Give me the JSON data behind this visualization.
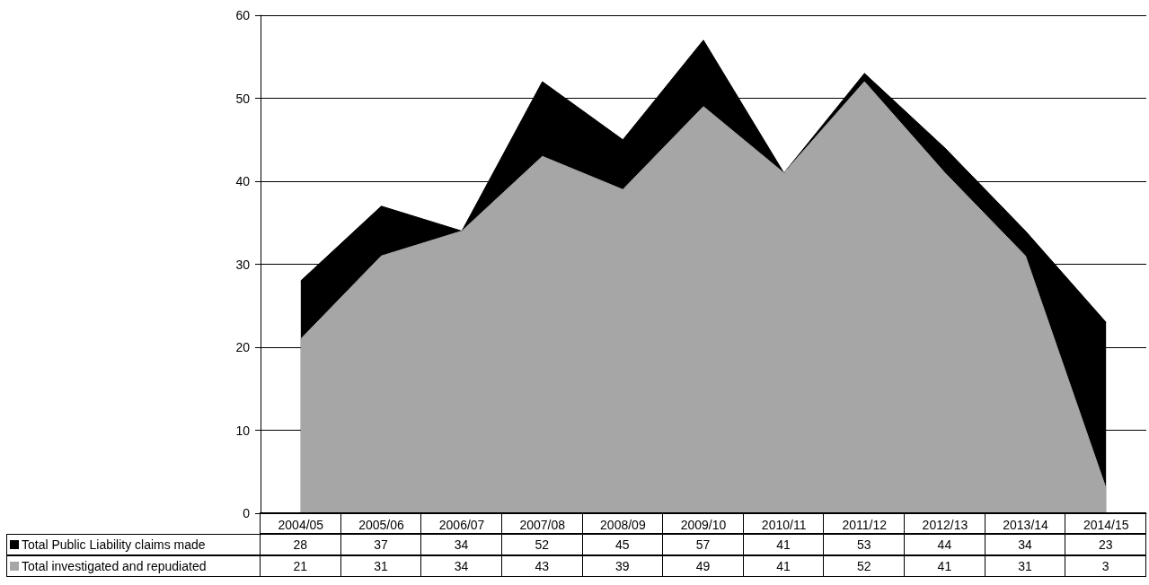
{
  "chart_data": {
    "type": "area",
    "categories": [
      "2004/05",
      "2005/06",
      "2006/07",
      "2007/08",
      "2008/09",
      "2009/10",
      "2010/11",
      "2011/12",
      "2012/13",
      "2013/14",
      "2014/15"
    ],
    "series": [
      {
        "name": "Total Public Liability claims made",
        "color": "#000000",
        "values": [
          28,
          37,
          34,
          52,
          45,
          57,
          41,
          53,
          44,
          34,
          23
        ]
      },
      {
        "name": "Total investigated and repudiated",
        "color": "#a6a6a6",
        "values": [
          21,
          31,
          34,
          43,
          39,
          49,
          41,
          52,
          41,
          31,
          3
        ]
      }
    ],
    "ylim": [
      0,
      60
    ],
    "yticks": [
      0,
      10,
      20,
      30,
      40,
      50,
      60
    ],
    "grid": "y",
    "legend": "bottom left",
    "data_labels": true,
    "marker": "none"
  }
}
